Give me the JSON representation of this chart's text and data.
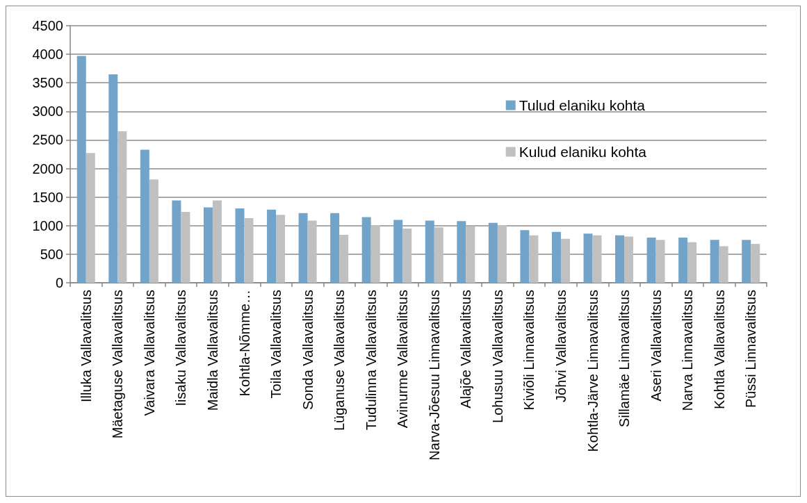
{
  "chart_data": {
    "type": "bar",
    "categories": [
      "Illuka Vallavalitsus",
      "Mäetaguse Vallavalitsus",
      "Vaivara Vallavalitsus",
      "Iisaku Vallavalitsus",
      "Maidla Vallavalitsus",
      "Kohtla-Nõmme…",
      "Toila Vallavalitsus",
      "Sonda Vallavalitsus",
      "Lüganuse Vallavalitsus",
      "Tudulinna Vallavalitsus",
      "Avinurme Vallavalitsus",
      "Narva-Jõesuu Linnavalitsus",
      "Alajõe Vallavalitsus",
      "Lohusuu Vallavalitsus",
      "Kiviõli Linnavalitsus",
      "Jõhvi Vallavalitsus",
      "Kohtla-Järve Linnavalitsus",
      "Sillamäe Linnavalitsus",
      "Aseri Vallavalitsus",
      "Narva Linnavalitsus",
      "Kohtla Vallavalitsus",
      "Püssi Linnavalitsus"
    ],
    "series": [
      {
        "name": "Tulud elaniku kohta",
        "color": "#72a4ca",
        "values": [
          3970,
          3650,
          2330,
          1440,
          1320,
          1300,
          1280,
          1220,
          1220,
          1150,
          1100,
          1090,
          1080,
          1050,
          920,
          890,
          860,
          830,
          790,
          790,
          750,
          750
        ]
      },
      {
        "name": "Kulud elaniku kohta",
        "color": "#c0c0c0",
        "values": [
          2270,
          2650,
          1810,
          1240,
          1440,
          1130,
          1190,
          1090,
          840,
          1010,
          950,
          970,
          990,
          1010,
          830,
          770,
          830,
          810,
          750,
          710,
          640,
          680
        ]
      }
    ],
    "ylim": [
      0,
      4500
    ],
    "yticks": [
      0,
      500,
      1000,
      1500,
      2000,
      2500,
      3000,
      3500,
      4000,
      4500
    ],
    "grid": "y",
    "legend": "top right"
  }
}
